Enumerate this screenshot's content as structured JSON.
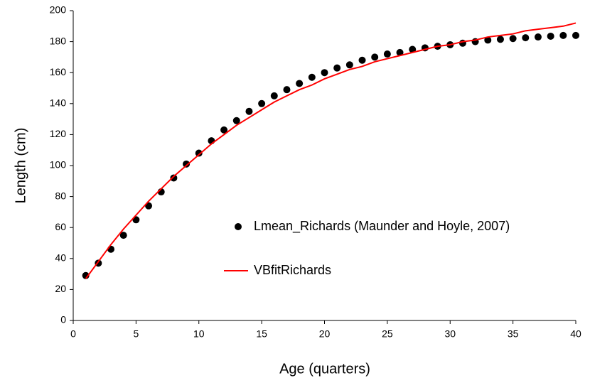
{
  "chart_data": {
    "type": "scatter",
    "x_label": "Age (quarters)",
    "y_label": "Length (cm)",
    "xlim": [
      0,
      40
    ],
    "xticks": [
      0,
      5,
      10,
      15,
      20,
      25,
      30,
      35,
      40
    ],
    "ylim": [
      0,
      200
    ],
    "yticks": [
      0,
      20,
      40,
      60,
      80,
      100,
      120,
      140,
      160,
      180,
      200
    ],
    "grid": false,
    "series": [
      {
        "name": "Lmean_Richards (Maunder and Hoyle, 2007)",
        "type": "scatter",
        "color": "#000000",
        "x": [
          1,
          2,
          3,
          4,
          5,
          6,
          7,
          8,
          9,
          10,
          11,
          12,
          13,
          14,
          15,
          16,
          17,
          18,
          19,
          20,
          21,
          22,
          23,
          24,
          25,
          26,
          27,
          28,
          29,
          30,
          31,
          32,
          33,
          34,
          35,
          36,
          37,
          38,
          39,
          40
        ],
        "values": [
          29,
          37,
          46,
          55,
          65,
          74,
          83,
          92,
          101,
          108,
          116,
          123,
          129,
          135,
          140,
          145,
          149,
          153,
          157,
          160,
          163,
          165,
          168,
          170,
          172,
          173,
          175,
          176,
          177,
          178,
          179,
          180,
          181,
          181.5,
          182,
          182.5,
          183,
          183.5,
          184,
          184
        ]
      },
      {
        "name": "VBfitRichards",
        "type": "line",
        "color": "#ff0000",
        "x": [
          1,
          2,
          3,
          4,
          5,
          6,
          7,
          8,
          9,
          10,
          11,
          12,
          13,
          14,
          15,
          16,
          17,
          18,
          19,
          20,
          21,
          22,
          23,
          24,
          25,
          26,
          27,
          28,
          29,
          30,
          31,
          32,
          33,
          34,
          35,
          36,
          37,
          38,
          39,
          40
        ],
        "values": [
          27,
          38,
          49,
          59,
          68,
          77,
          85,
          93,
          100,
          107,
          114,
          120,
          126,
          131,
          136,
          141,
          145,
          149,
          152,
          156,
          159,
          162,
          164,
          167,
          169,
          171,
          173,
          175,
          177,
          178,
          180,
          181,
          183,
          184,
          185,
          187,
          188,
          189,
          190,
          192
        ]
      }
    ]
  }
}
